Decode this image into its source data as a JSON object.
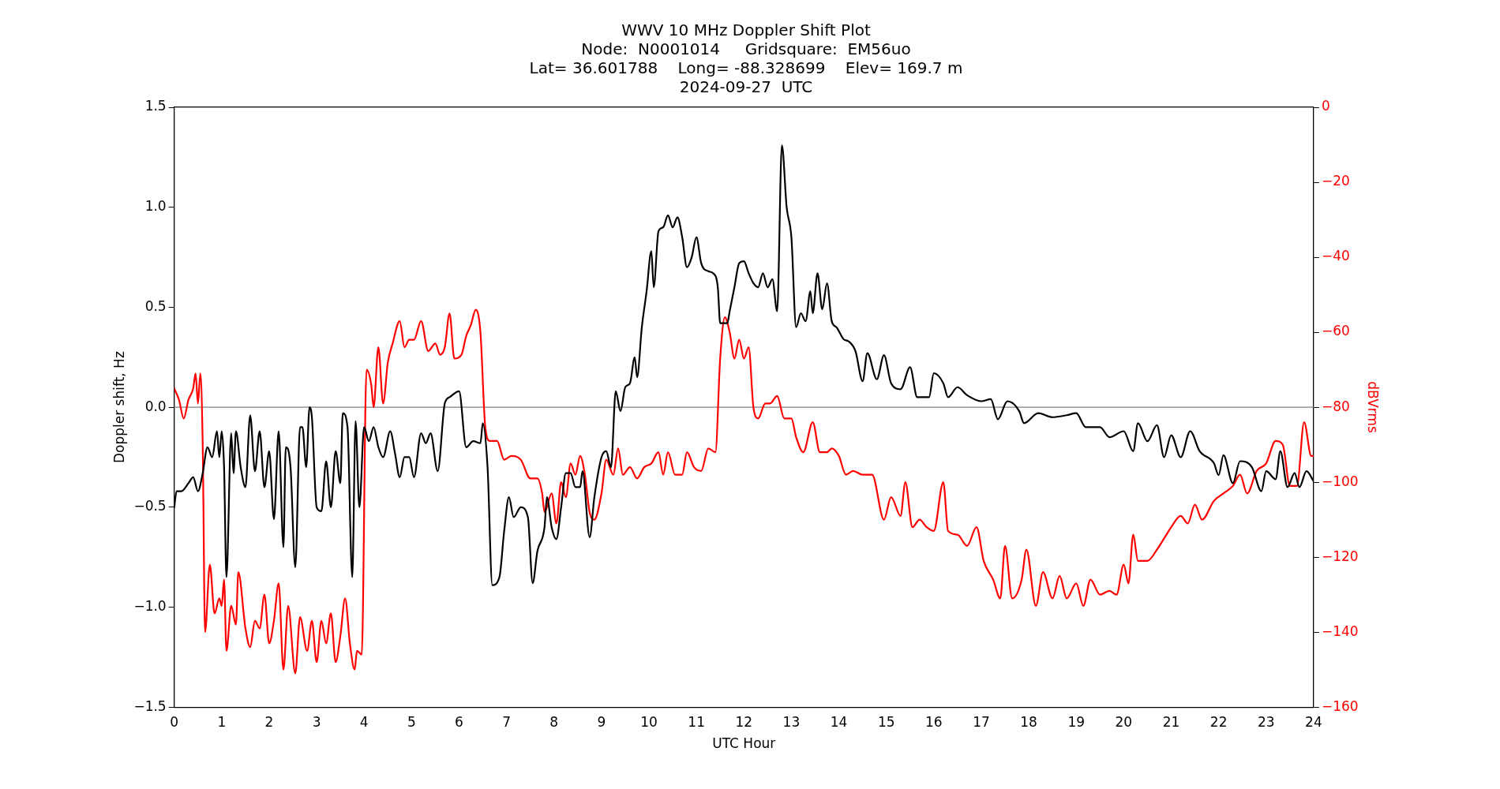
{
  "chart_data": {
    "type": "line",
    "title": "WWV 10 MHz Doppler Shift Plot",
    "subtitle": "Node:  N0001014     Gridsquare:  EM56uo\nLat= 36.601788    Long= -88.328699    Elev= 169.7 m\n2024-09-27  UTC",
    "xlabel": "UTC Hour",
    "ylabel": "Doppler shift, Hz",
    "y2label": "dBVrms",
    "xlim": [
      0,
      24
    ],
    "xticks": [
      0,
      1,
      2,
      3,
      4,
      5,
      6,
      7,
      8,
      9,
      10,
      11,
      12,
      13,
      14,
      15,
      16,
      17,
      18,
      19,
      20,
      21,
      22,
      23,
      24
    ],
    "ylim": [
      -1.5,
      1.5
    ],
    "yticks": [
      -1.5,
      {
        "value": -1,
        "label": "−1.0"
      },
      -0.5,
      {
        "value": 0,
        "label": "0.0"
      },
      0.5,
      {
        "value": 1,
        "label": "1.0"
      },
      1.5
    ],
    "y2lim": [
      -160,
      0
    ],
    "y2ticks": [
      -160,
      -140,
      -120,
      -100,
      -80,
      -60,
      -40,
      -20,
      0
    ],
    "grid": false,
    "legend": false,
    "marker": "none",
    "line_style": "solid",
    "ref_lines": [
      {
        "axis": "y",
        "value": 0,
        "color": "#808080"
      }
    ],
    "series": [
      {
        "color": "#000000",
        "axis": "y",
        "x": [
          0,
          0.05,
          0.15,
          0.3,
          0.4,
          0.5,
          0.6,
          0.7,
          0.8,
          0.9,
          0.95,
          1.0,
          1.05,
          1.1,
          1.2,
          1.25,
          1.3,
          1.4,
          1.5,
          1.6,
          1.7,
          1.8,
          1.9,
          2.0,
          2.1,
          2.2,
          2.3,
          2.35,
          2.45,
          2.55,
          2.65,
          2.7,
          2.78,
          2.85,
          2.9,
          3.0,
          3.1,
          3.2,
          3.3,
          3.4,
          3.5,
          3.55,
          3.65,
          3.75,
          3.82,
          3.9,
          4.0,
          4.1,
          4.2,
          4.3,
          4.4,
          4.55,
          4.65,
          4.75,
          4.85,
          4.95,
          5.05,
          5.2,
          5.3,
          5.4,
          5.55,
          5.7,
          5.8,
          6.0,
          6.15,
          6.3,
          6.45,
          6.5,
          6.6,
          6.7,
          6.85,
          6.95,
          7.05,
          7.15,
          7.3,
          7.45,
          7.55,
          7.65,
          7.8,
          7.85,
          7.95,
          8.05,
          8.15,
          8.25,
          8.35,
          8.45,
          8.55,
          8.6,
          8.75,
          8.85,
          9.0,
          9.1,
          9.2,
          9.3,
          9.4,
          9.5,
          9.6,
          9.7,
          9.75,
          9.85,
          9.95,
          10.05,
          10.1,
          10.2,
          10.3,
          10.4,
          10.5,
          10.6,
          10.7,
          10.8,
          10.9,
          11.0,
          11.1,
          11.25,
          11.35,
          11.45,
          11.5,
          11.65,
          11.7,
          11.8,
          11.9,
          12.0,
          12.1,
          12.2,
          12.3,
          12.4,
          12.5,
          12.6,
          12.7,
          12.8,
          12.9,
          13.0,
          13.1,
          13.2,
          13.3,
          13.4,
          13.45,
          13.55,
          13.65,
          13.75,
          13.85,
          13.95,
          14.1,
          14.2,
          14.35,
          14.5,
          14.6,
          14.8,
          14.95,
          15.1,
          15.3,
          15.5,
          15.65,
          15.9,
          16.0,
          16.2,
          16.3,
          16.5,
          16.7,
          17.0,
          17.2,
          17.35,
          17.55,
          17.8,
          17.9,
          18.2,
          18.5,
          18.8,
          19.0,
          19.2,
          19.5,
          19.7,
          20.0,
          20.2,
          20.3,
          20.5,
          20.7,
          20.85,
          21.0,
          21.2,
          21.4,
          21.6,
          21.9,
          22.0,
          22.1,
          22.3,
          22.45,
          22.7,
          22.9,
          23.0,
          23.2,
          23.3,
          23.45,
          23.6,
          23.7,
          23.85,
          24
        ],
        "values": [
          -0.5,
          -0.42,
          -0.42,
          -0.38,
          -0.35,
          -0.42,
          -0.33,
          -0.2,
          -0.25,
          -0.12,
          -0.25,
          -0.12,
          -0.3,
          -0.85,
          -0.13,
          -0.33,
          -0.12,
          -0.3,
          -0.4,
          -0.04,
          -0.32,
          -0.12,
          -0.4,
          -0.22,
          -0.56,
          -0.12,
          -0.7,
          -0.2,
          -0.3,
          -0.8,
          -0.1,
          -0.1,
          -0.3,
          0.0,
          -0.05,
          -0.5,
          -0.52,
          -0.27,
          -0.5,
          -0.22,
          -0.38,
          -0.03,
          -0.1,
          -0.85,
          -0.07,
          -0.5,
          -0.1,
          -0.17,
          -0.1,
          -0.2,
          -0.25,
          -0.12,
          -0.23,
          -0.35,
          -0.25,
          -0.25,
          -0.35,
          -0.13,
          -0.18,
          -0.13,
          -0.32,
          0.02,
          0.05,
          0.08,
          -0.2,
          -0.17,
          -0.18,
          -0.08,
          -0.3,
          -0.89,
          -0.85,
          -0.62,
          -0.45,
          -0.55,
          -0.5,
          -0.55,
          -0.88,
          -0.72,
          -0.6,
          -0.45,
          -0.6,
          -0.66,
          -0.5,
          -0.33,
          -0.33,
          -0.4,
          -0.4,
          -0.32,
          -0.65,
          -0.45,
          -0.25,
          -0.22,
          -0.3,
          0.08,
          -0.02,
          0.1,
          0.12,
          0.25,
          0.15,
          0.4,
          0.58,
          0.78,
          0.6,
          0.88,
          0.9,
          0.96,
          0.9,
          0.95,
          0.85,
          0.7,
          0.75,
          0.85,
          0.72,
          0.68,
          0.67,
          0.6,
          0.42,
          0.42,
          0.48,
          0.6,
          0.72,
          0.73,
          0.67,
          0.62,
          0.6,
          0.67,
          0.6,
          0.64,
          0.48,
          1.31,
          1.0,
          0.85,
          0.4,
          0.47,
          0.43,
          0.58,
          0.47,
          0.67,
          0.49,
          0.62,
          0.43,
          0.4,
          0.34,
          0.33,
          0.28,
          0.13,
          0.27,
          0.14,
          0.26,
          0.12,
          0.09,
          0.2,
          0.05,
          0.05,
          0.17,
          0.12,
          0.05,
          0.1,
          0.06,
          0.03,
          0.04,
          -0.06,
          0.03,
          -0.02,
          -0.08,
          -0.03,
          -0.05,
          -0.04,
          -0.03,
          -0.1,
          -0.1,
          -0.15,
          -0.12,
          -0.22,
          -0.08,
          -0.17,
          -0.09,
          -0.25,
          -0.14,
          -0.25,
          -0.12,
          -0.22,
          -0.28,
          -0.34,
          -0.24,
          -0.38,
          -0.27,
          -0.3,
          -0.42,
          -0.32,
          -0.36,
          -0.22,
          -0.4,
          -0.33,
          -0.4,
          -0.32,
          -0.37
        ]
      },
      {
        "color": "#ff0000",
        "axis": "y2",
        "x": [
          0,
          0.1,
          0.2,
          0.3,
          0.4,
          0.45,
          0.5,
          0.55,
          0.6,
          0.65,
          0.75,
          0.85,
          0.95,
          1.0,
          1.05,
          1.1,
          1.2,
          1.3,
          1.35,
          1.5,
          1.6,
          1.7,
          1.8,
          1.9,
          2.0,
          2.1,
          2.2,
          2.3,
          2.4,
          2.55,
          2.65,
          2.8,
          2.9,
          3.0,
          3.1,
          3.2,
          3.3,
          3.4,
          3.5,
          3.6,
          3.7,
          3.8,
          3.85,
          3.95,
          4.05,
          4.15,
          4.2,
          4.3,
          4.4,
          4.5,
          4.6,
          4.75,
          4.85,
          4.95,
          5.05,
          5.2,
          5.35,
          5.5,
          5.6,
          5.7,
          5.8,
          5.9,
          6.05,
          6.15,
          6.25,
          6.35,
          6.45,
          6.55,
          6.65,
          6.8,
          6.95,
          7.1,
          7.3,
          7.5,
          7.65,
          7.75,
          7.8,
          7.95,
          8.05,
          8.15,
          8.25,
          8.35,
          8.45,
          8.55,
          8.65,
          8.75,
          8.85,
          9.0,
          9.1,
          9.25,
          9.35,
          9.45,
          9.6,
          9.75,
          9.9,
          10.05,
          10.2,
          10.3,
          10.4,
          10.55,
          10.7,
          10.8,
          10.95,
          11.1,
          11.25,
          11.4,
          11.5,
          11.6,
          11.7,
          11.8,
          11.9,
          12.0,
          12.1,
          12.2,
          12.3,
          12.45,
          12.55,
          12.7,
          12.85,
          13.0,
          13.1,
          13.25,
          13.45,
          13.6,
          13.75,
          13.85,
          14.0,
          14.15,
          14.3,
          14.5,
          14.7,
          14.95,
          15.1,
          15.3,
          15.4,
          15.55,
          15.7,
          15.85,
          16.0,
          16.2,
          16.3,
          16.5,
          16.7,
          16.9,
          17.05,
          17.25,
          17.4,
          17.5,
          17.65,
          17.85,
          17.95,
          18.15,
          18.3,
          18.5,
          18.65,
          18.8,
          19.0,
          19.15,
          19.3,
          19.5,
          19.7,
          19.85,
          20.0,
          20.1,
          20.2,
          20.3,
          20.5,
          20.7,
          20.9,
          21.0,
          21.2,
          21.35,
          21.5,
          21.65,
          21.9,
          22.1,
          22.3,
          22.45,
          22.6,
          22.8,
          23.0,
          23.2,
          23.35,
          23.5,
          23.65,
          23.8,
          23.95,
          24
        ],
        "values": [
          -75,
          -78,
          -83,
          -78,
          -75,
          -71,
          -79,
          -71,
          -90,
          -140,
          -122,
          -135,
          -131,
          -133,
          -126,
          -145,
          -133,
          -138,
          -124,
          -139,
          -144,
          -137,
          -139,
          -130,
          -143,
          -137,
          -127,
          -150,
          -133,
          -151,
          -136,
          -145,
          -137,
          -148,
          -137,
          -143,
          -135,
          -148,
          -141,
          -131,
          -143,
          -150,
          -145,
          -146,
          -70,
          -74,
          -80,
          -64,
          -79,
          -68,
          -63,
          -57,
          -64,
          -62,
          -62,
          -57,
          -65,
          -63,
          -66,
          -64,
          -55,
          -67,
          -66,
          -61,
          -58,
          -54,
          -60,
          -85,
          -89,
          -89,
          -94,
          -93,
          -94,
          -99,
          -99,
          -103,
          -108,
          -103,
          -111,
          -100,
          -104,
          -95,
          -98,
          -93,
          -98,
          -108,
          -110,
          -103,
          -94,
          -98,
          -91,
          -98,
          -96,
          -99,
          -96,
          -95,
          -92,
          -98,
          -92,
          -98,
          -98,
          -92,
          -96,
          -97,
          -91,
          -92,
          -67,
          -56,
          -60,
          -67,
          -62,
          -67,
          -64,
          -80,
          -83,
          -79,
          -79,
          -77,
          -83,
          -83,
          -88,
          -92,
          -84,
          -92,
          -92,
          -91,
          -93,
          -98,
          -97,
          -98,
          -98,
          -110,
          -104,
          -109,
          -100,
          -112,
          -110,
          -112,
          -113,
          -100,
          -113,
          -114,
          -117,
          -112,
          -121,
          -126,
          -131,
          -117,
          -131,
          -126,
          -118,
          -133,
          -124,
          -131,
          -125,
          -131,
          -127,
          -133,
          -126,
          -130,
          -129,
          -130,
          -122,
          -127,
          -114,
          -121,
          -121,
          -118,
          -114,
          -112,
          -109,
          -111,
          -106,
          -110,
          -105,
          -103,
          -101,
          -98,
          -103,
          -97,
          -95,
          -89,
          -90,
          -101,
          -101,
          -84,
          -93,
          -93
        ]
      }
    ]
  }
}
